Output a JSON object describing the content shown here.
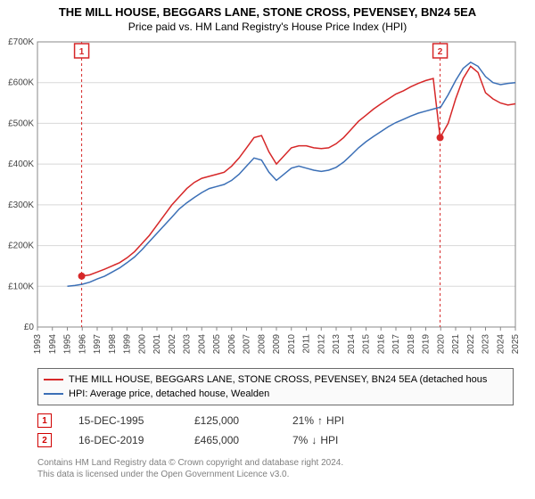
{
  "title_main": "THE MILL HOUSE, BEGGARS LANE, STONE CROSS, PEVENSEY, BN24 5EA",
  "title_sub": "Price paid vs. HM Land Registry's House Price Index (HPI)",
  "title_fontsize": 13,
  "subtitle_fontsize": 12,
  "chart": {
    "type": "line",
    "background_color": "#ffffff",
    "plot_border_color": "#888888",
    "grid_color": "#d8d8d8",
    "line_width": 1.5,
    "x": {
      "label": "",
      "min": 1993,
      "max": 2025,
      "tick_step": 1,
      "tick_labels": [
        "1993",
        "1994",
        "1995",
        "1996",
        "1997",
        "1998",
        "1999",
        "2000",
        "2001",
        "2002",
        "2003",
        "2004",
        "2005",
        "2006",
        "2007",
        "2008",
        "2009",
        "2010",
        "2011",
        "2012",
        "2013",
        "2014",
        "2015",
        "2016",
        "2017",
        "2018",
        "2019",
        "2020",
        "2021",
        "2022",
        "2023",
        "2024",
        "2025"
      ],
      "tick_rotation": -90,
      "tick_fontsize": 10
    },
    "y": {
      "label": "",
      "min": 0,
      "max": 700,
      "prefix": "£",
      "suffix": "K",
      "tick_step": 100,
      "tick_labels": [
        "£0",
        "£100K",
        "£200K",
        "£300K",
        "£400K",
        "£500K",
        "£600K",
        "£700K"
      ],
      "tick_fontsize": 10
    },
    "series": [
      {
        "name": "property",
        "label": "THE MILL HOUSE, BEGGARS LANE, STONE CROSS, PEVENSEY, BN24 5EA (detached hous",
        "color": "#d62728",
        "x": [
          1995.96,
          1996.5,
          1997,
          1997.5,
          1998,
          1998.5,
          1999,
          1999.5,
          2000,
          2000.5,
          2001,
          2001.5,
          2002,
          2002.5,
          2003,
          2003.5,
          2004,
          2004.5,
          2005,
          2005.5,
          2006,
          2006.5,
          2007,
          2007.5,
          2008,
          2008.5,
          2009,
          2009.5,
          2010,
          2010.5,
          2011,
          2011.5,
          2012,
          2012.5,
          2013,
          2013.5,
          2014,
          2014.5,
          2015,
          2015.5,
          2016,
          2016.5,
          2017,
          2017.5,
          2018,
          2018.5,
          2019,
          2019.5,
          2019.96,
          2020.5,
          2021,
          2021.5,
          2022,
          2022.5,
          2023,
          2023.5,
          2024,
          2024.5,
          2025
        ],
        "y": [
          125,
          128,
          135,
          142,
          150,
          158,
          170,
          185,
          205,
          225,
          250,
          275,
          300,
          320,
          340,
          355,
          365,
          370,
          375,
          380,
          395,
          415,
          440,
          465,
          470,
          430,
          400,
          420,
          440,
          445,
          445,
          440,
          438,
          440,
          450,
          465,
          485,
          505,
          520,
          535,
          548,
          560,
          572,
          580,
          590,
          598,
          605,
          610,
          465,
          500,
          560,
          610,
          640,
          625,
          575,
          560,
          550,
          545,
          548
        ]
      },
      {
        "name": "hpi",
        "label": "HPI: Average price, detached house, Wealden",
        "color": "#3b6fb6",
        "x": [
          1995,
          1995.5,
          1996,
          1996.5,
          1997,
          1997.5,
          1998,
          1998.5,
          1999,
          1999.5,
          2000,
          2000.5,
          2001,
          2001.5,
          2002,
          2002.5,
          2003,
          2003.5,
          2004,
          2004.5,
          2005,
          2005.5,
          2006,
          2006.5,
          2007,
          2007.5,
          2008,
          2008.5,
          2009,
          2009.5,
          2010,
          2010.5,
          2011,
          2011.5,
          2012,
          2012.5,
          2013,
          2013.5,
          2014,
          2014.5,
          2015,
          2015.5,
          2016,
          2016.5,
          2017,
          2017.5,
          2018,
          2018.5,
          2019,
          2019.5,
          2020,
          2020.5,
          2021,
          2021.5,
          2022,
          2022.5,
          2023,
          2023.5,
          2024,
          2024.5,
          2025
        ],
        "y": [
          100,
          102,
          105,
          110,
          118,
          125,
          135,
          145,
          158,
          172,
          190,
          210,
          230,
          250,
          270,
          290,
          305,
          318,
          330,
          340,
          345,
          350,
          360,
          375,
          395,
          415,
          410,
          380,
          360,
          375,
          390,
          395,
          390,
          385,
          382,
          385,
          392,
          405,
          422,
          440,
          455,
          468,
          480,
          492,
          502,
          510,
          518,
          525,
          530,
          535,
          540,
          570,
          605,
          635,
          650,
          640,
          615,
          600,
          595,
          598,
          600
        ]
      }
    ],
    "markers": [
      {
        "n": "1",
        "x": 1995.96,
        "y": 125,
        "label_y_top": true
      },
      {
        "n": "2",
        "x": 2019.96,
        "y": 465,
        "label_y_top": true
      }
    ],
    "marker_style": {
      "dot_radius": 4,
      "dot_color": "#d62728",
      "vline_color": "#d62728",
      "vline_dash": "3,3",
      "badge_border": "#d62728",
      "badge_text": "#d62728",
      "badge_fill": "#ffffff"
    }
  },
  "legend": {
    "border_color": "#6a6a6a",
    "background": "#fafafa",
    "fontsize": 11,
    "rows": [
      {
        "color": "#d62728",
        "text": "THE MILL HOUSE, BEGGARS LANE, STONE CROSS, PEVENSEY, BN24 5EA (detached hous"
      },
      {
        "color": "#3b6fb6",
        "text": "HPI: Average price, detached house, Wealden"
      }
    ]
  },
  "marker_table": {
    "fontsize": 12,
    "rows": [
      {
        "n": "1",
        "date": "15-DEC-1995",
        "price": "£125,000",
        "pct": "21%",
        "dir": "↑",
        "suffix": "HPI"
      },
      {
        "n": "2",
        "date": "16-DEC-2019",
        "price": "£465,000",
        "pct": "7%",
        "dir": "↓",
        "suffix": "HPI"
      }
    ]
  },
  "footer": {
    "line1": "Contains HM Land Registry data © Crown copyright and database right 2024.",
    "line2": "This data is licensed under the Open Government Licence v3.0.",
    "color": "#808080",
    "fontsize": 10
  }
}
